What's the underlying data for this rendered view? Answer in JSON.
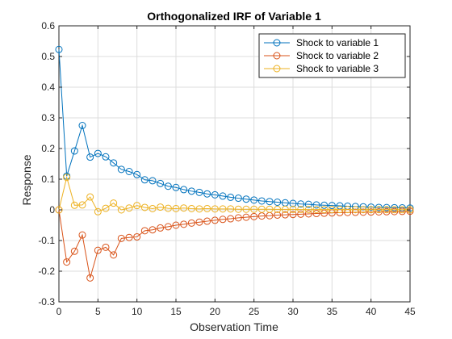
{
  "chart_data": {
    "type": "line",
    "title": "Orthogonalized IRF of Variable 1",
    "xlabel": "Observation Time",
    "ylabel": "Response",
    "xlim": [
      0,
      45
    ],
    "ylim": [
      -0.3,
      0.6
    ],
    "xticks": [
      0,
      5,
      10,
      15,
      20,
      25,
      30,
      35,
      40,
      45
    ],
    "yticks": [
      -0.3,
      -0.2,
      -0.1,
      0,
      0.1,
      0.2,
      0.3,
      0.4,
      0.5,
      0.6
    ],
    "xtick_labels": [
      "0",
      "5",
      "10",
      "15",
      "20",
      "25",
      "30",
      "35",
      "40",
      "45"
    ],
    "ytick_labels": [
      "-0.3",
      "-0.2",
      "-0.1",
      "0",
      "0.1",
      "0.2",
      "0.3",
      "0.4",
      "0.5",
      "0.6"
    ],
    "grid": true,
    "legend_position": "top-right",
    "x": [
      0,
      1,
      2,
      3,
      4,
      5,
      6,
      7,
      8,
      9,
      10,
      11,
      12,
      13,
      14,
      15,
      16,
      17,
      18,
      19,
      20,
      21,
      22,
      23,
      24,
      25,
      26,
      27,
      28,
      29,
      30,
      31,
      32,
      33,
      34,
      35,
      36,
      37,
      38,
      39,
      40,
      41,
      42,
      43,
      44,
      45
    ],
    "series": [
      {
        "name": "Shock to variable 1",
        "color": "#0072BD",
        "values": [
          0.523,
          0.11,
          0.192,
          0.275,
          0.172,
          0.184,
          0.173,
          0.153,
          0.132,
          0.125,
          0.115,
          0.098,
          0.095,
          0.086,
          0.077,
          0.073,
          0.066,
          0.061,
          0.057,
          0.052,
          0.049,
          0.045,
          0.041,
          0.038,
          0.035,
          0.032,
          0.029,
          0.027,
          0.025,
          0.023,
          0.021,
          0.019,
          0.018,
          0.016,
          0.015,
          0.014,
          0.013,
          0.012,
          0.011,
          0.01,
          0.009,
          0.008,
          0.0075,
          0.007,
          0.0065,
          0.006
        ]
      },
      {
        "name": "Shock to variable 2",
        "color": "#D95319",
        "values": [
          0.0,
          -0.17,
          -0.135,
          -0.082,
          -0.222,
          -0.132,
          -0.122,
          -0.147,
          -0.093,
          -0.09,
          -0.088,
          -0.068,
          -0.065,
          -0.059,
          -0.055,
          -0.05,
          -0.047,
          -0.043,
          -0.04,
          -0.037,
          -0.034,
          -0.031,
          -0.029,
          -0.026,
          -0.024,
          -0.022,
          -0.02,
          -0.019,
          -0.017,
          -0.016,
          -0.015,
          -0.014,
          -0.013,
          -0.012,
          -0.011,
          -0.01,
          -0.009,
          -0.0085,
          -0.008,
          -0.0075,
          -0.007,
          -0.0065,
          -0.006,
          -0.0055,
          -0.005,
          -0.0045
        ]
      },
      {
        "name": "Shock to variable 3",
        "color": "#EDB120",
        "values": [
          0.0,
          0.106,
          0.015,
          0.016,
          0.042,
          -0.006,
          0.005,
          0.022,
          0.0,
          0.006,
          0.014,
          0.008,
          0.004,
          0.009,
          0.005,
          0.004,
          0.006,
          0.004,
          0.003,
          0.004,
          0.003,
          0.003,
          0.003,
          0.002,
          0.002,
          0.002,
          0.002,
          0.002,
          0.0015,
          0.0015,
          0.0015,
          0.001,
          0.001,
          0.001,
          0.001,
          0.001,
          0.001,
          0.001,
          0.0008,
          0.0008,
          0.0008,
          0.0007,
          0.0007,
          0.0006,
          0.0006,
          0.0006
        ]
      }
    ]
  }
}
